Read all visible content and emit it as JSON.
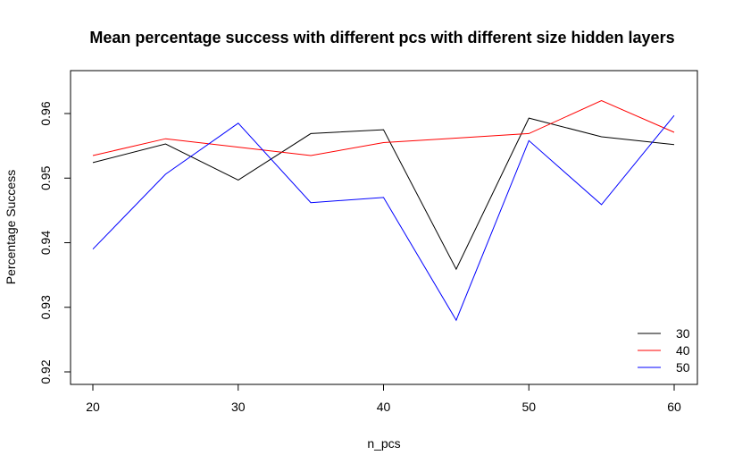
{
  "chart_data": {
    "type": "line",
    "title": "Mean percentage success with different pcs with different size hidden layers",
    "xlabel": "n_pcs",
    "ylabel": "Percentage Success",
    "x": [
      20,
      25,
      30,
      35,
      40,
      45,
      50,
      55,
      60
    ],
    "xticks": [
      20,
      30,
      40,
      50,
      60
    ],
    "yticks": [
      0.92,
      0.93,
      0.94,
      0.95,
      0.96
    ],
    "xlim": [
      20,
      60
    ],
    "ylim": [
      0.92,
      0.96
    ],
    "grid": false,
    "legend_position": "bottom-right",
    "series": [
      {
        "name": "30",
        "color": "#000000",
        "values": [
          0.9524,
          0.9553,
          0.9497,
          0.9569,
          0.9575,
          0.9359,
          0.9593,
          0.9564,
          0.9552
        ]
      },
      {
        "name": "40",
        "color": "#ff0000",
        "values": [
          0.9535,
          0.9561,
          0.9548,
          0.9535,
          0.9555,
          0.9562,
          0.9569,
          0.962,
          0.9571
        ]
      },
      {
        "name": "50",
        "color": "#0000ff",
        "values": [
          0.939,
          0.9506,
          0.9585,
          0.9462,
          0.947,
          0.928,
          0.9558,
          0.9459,
          0.9597
        ]
      }
    ]
  }
}
